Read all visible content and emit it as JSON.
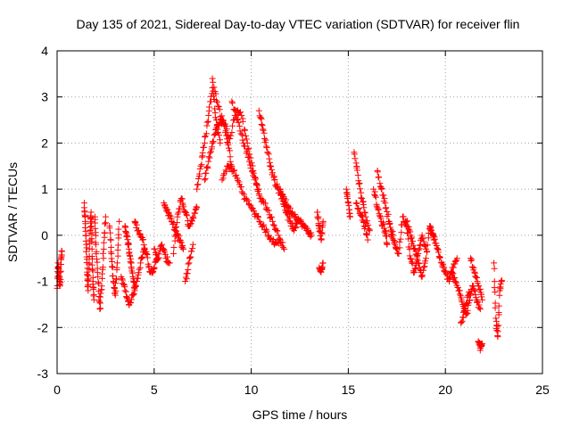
{
  "chart_data": {
    "type": "scatter",
    "title": "Day 135 of 2021, Sidereal Day-to-day VTEC variation (SDTVAR) for receiver flin",
    "xlabel": "GPS time / hours",
    "ylabel": "SDTVAR / TECUs",
    "xlim": [
      0,
      25
    ],
    "ylim": [
      -3,
      4
    ],
    "xticks": [
      0,
      5,
      10,
      15,
      20,
      25
    ],
    "yticks": [
      -3,
      -2,
      -1,
      0,
      1,
      2,
      3,
      4
    ],
    "xtick_labels": [
      "0",
      "5",
      "10",
      "15",
      "20",
      "25"
    ],
    "ytick_labels": [
      "-3",
      "-2",
      "-1",
      "0",
      "1",
      "2",
      "3",
      "4"
    ],
    "grid": true,
    "marker": "+",
    "color": "#ff0000",
    "series": [
      {
        "name": "SDTVAR",
        "segments": [
          {
            "x": [
              0.0,
              0.05,
              0.1,
              0.15,
              0.2,
              0.25
            ],
            "y": [
              -1.15,
              -0.6,
              -0.9,
              -1.1,
              -0.5,
              -0.35
            ]
          },
          {
            "x": [
              1.4,
              1.45,
              1.5,
              1.55,
              1.6,
              1.65,
              1.7,
              1.75,
              1.8,
              1.85,
              1.9
            ],
            "y": [
              0.7,
              0.3,
              -0.2,
              -0.8,
              -1.2,
              -0.6,
              0.1,
              0.5,
              -0.3,
              -1.0,
              -1.4
            ]
          },
          {
            "x": [
              1.95,
              2.0,
              2.1,
              2.2,
              2.3,
              2.4,
              2.5
            ],
            "y": [
              0.4,
              -0.2,
              -0.9,
              -1.6,
              -1.1,
              -0.3,
              0.4
            ]
          },
          {
            "x": [
              2.7,
              2.8,
              2.9,
              3.0,
              3.1,
              3.2
            ],
            "y": [
              0.2,
              -0.4,
              -1.0,
              -1.3,
              -0.6,
              0.3
            ]
          },
          {
            "x": [
              3.3,
              3.5,
              3.7,
              3.9,
              4.1,
              4.3,
              4.5
            ],
            "y": [
              -0.9,
              -1.2,
              -1.5,
              -1.3,
              -1.0,
              -0.6,
              -0.3
            ]
          },
          {
            "x": [
              3.5,
              3.6,
              3.7,
              3.8,
              3.9,
              4.0
            ],
            "y": [
              0.2,
              0.0,
              -0.3,
              -0.6,
              -0.9,
              -1.2
            ]
          },
          {
            "x": [
              4.0,
              4.2,
              4.4,
              4.6,
              4.8,
              5.0,
              5.2
            ],
            "y": [
              0.3,
              0.1,
              -0.1,
              -0.4,
              -0.8,
              -0.7,
              -0.5
            ]
          },
          {
            "x": [
              5.0,
              5.2,
              5.4,
              5.6,
              5.8
            ],
            "y": [
              -0.3,
              -0.5,
              -0.2,
              -0.5,
              -0.6
            ]
          },
          {
            "x": [
              5.5,
              5.7,
              5.9,
              6.1,
              6.3,
              6.5
            ],
            "y": [
              0.7,
              0.5,
              0.3,
              0.1,
              -0.1,
              -0.3
            ]
          },
          {
            "x": [
              6.0,
              6.2,
              6.4,
              6.6,
              6.8,
              7.0,
              7.2
            ],
            "y": [
              -0.4,
              0.4,
              0.8,
              0.5,
              0.2,
              0.4,
              0.6
            ]
          },
          {
            "x": [
              6.6,
              6.8,
              7.0
            ],
            "y": [
              -1.0,
              -0.6,
              -0.2
            ]
          },
          {
            "x": [
              7.2,
              7.4,
              7.6,
              7.8,
              8.0,
              8.2,
              8.4
            ],
            "y": [
              1.0,
              1.5,
              2.0,
              2.6,
              3.2,
              2.5,
              2.0
            ]
          },
          {
            "x": [
              7.6,
              7.8,
              8.0,
              8.2,
              8.4,
              8.6,
              8.8,
              9.0
            ],
            "y": [
              1.2,
              1.6,
              2.0,
              2.3,
              2.5,
              2.4,
              2.0,
              1.5
            ]
          },
          {
            "x": [
              8.0,
              8.3,
              8.6,
              8.9,
              9.2,
              9.5,
              9.8,
              10.1,
              10.4
            ],
            "y": [
              3.4,
              2.8,
              2.4,
              2.1,
              2.7,
              2.6,
              2.0,
              1.4,
              0.9
            ]
          },
          {
            "x": [
              8.5,
              8.8,
              9.1,
              9.4,
              9.7,
              10.0,
              10.3,
              10.6,
              10.9,
              11.2,
              11.5
            ],
            "y": [
              1.2,
              1.5,
              1.4,
              1.1,
              0.8,
              0.6,
              0.4,
              0.2,
              0.0,
              -0.2,
              -0.1
            ]
          },
          {
            "x": [
              9.0,
              9.3,
              9.6,
              9.9,
              10.2,
              10.5,
              10.8,
              11.1,
              11.4,
              11.7
            ],
            "y": [
              2.9,
              2.5,
              2.0,
              1.6,
              1.2,
              0.8,
              0.6,
              0.3,
              0.0,
              -0.3
            ]
          },
          {
            "x": [
              10.4,
              10.6,
              10.8,
              11.0,
              11.2,
              11.4,
              11.6,
              11.8,
              12.0,
              12.2,
              12.4
            ],
            "y": [
              2.7,
              2.3,
              1.9,
              1.5,
              1.2,
              1.0,
              0.8,
              0.5,
              0.3,
              0.1,
              0.3
            ]
          },
          {
            "x": [
              11.5,
              11.7,
              11.9,
              12.1,
              12.3,
              12.5,
              12.7,
              12.9,
              13.1
            ],
            "y": [
              1.0,
              0.8,
              0.6,
              0.5,
              0.4,
              0.3,
              0.2,
              0.1,
              0.0
            ]
          },
          {
            "x": [
              13.4,
              13.5,
              13.6,
              13.7
            ],
            "y": [
              0.5,
              0.2,
              -0.1,
              0.3
            ]
          },
          {
            "x": [
              13.5,
              13.6,
              13.7
            ],
            "y": [
              -0.7,
              -0.8,
              -0.6
            ]
          },
          {
            "x": [
              14.9,
              15.0,
              15.1
            ],
            "y": [
              1.0,
              0.7,
              0.4
            ]
          },
          {
            "x": [
              15.3,
              15.5,
              15.7,
              15.9,
              16.1
            ],
            "y": [
              1.8,
              1.3,
              0.8,
              0.4,
              0.1
            ]
          },
          {
            "x": [
              15.4,
              15.6,
              15.8,
              16.0
            ],
            "y": [
              0.7,
              0.5,
              0.3,
              -0.1
            ]
          },
          {
            "x": [
              16.3,
              16.5,
              16.7,
              16.9,
              17.0
            ],
            "y": [
              1.0,
              0.6,
              0.3,
              0.1,
              -0.2
            ]
          },
          {
            "x": [
              16.5,
              16.7,
              16.9,
              17.1,
              17.3
            ],
            "y": [
              1.4,
              1.0,
              0.7,
              0.3,
              0.0
            ]
          },
          {
            "x": [
              17.2,
              17.4,
              17.6,
              17.8,
              18.0,
              18.2,
              18.4,
              18.6,
              18.8,
              19.0
            ],
            "y": [
              0.0,
              -0.2,
              -0.4,
              0.4,
              0.2,
              -0.5,
              -0.8,
              -0.4,
              0.0,
              -0.3
            ]
          },
          {
            "x": [
              18.0,
              18.2,
              18.4,
              18.6,
              18.8,
              19.0,
              19.2,
              19.4
            ],
            "y": [
              0.3,
              0.0,
              -0.3,
              -0.6,
              -0.9,
              -0.5,
              0.2,
              -0.1
            ]
          },
          {
            "x": [
              19.2,
              19.4,
              19.6,
              19.8,
              20.0,
              20.2,
              20.4,
              20.6
            ],
            "y": [
              0.2,
              0.0,
              -0.3,
              -0.6,
              -0.8,
              -1.0,
              -0.7,
              -0.5
            ]
          },
          {
            "x": [
              20.3,
              20.5,
              20.7,
              20.9,
              21.1,
              21.3
            ],
            "y": [
              -0.8,
              -1.0,
              -1.2,
              -1.5,
              -1.7,
              -1.3
            ]
          },
          {
            "x": [
              20.8,
              21.0,
              21.2,
              21.4,
              21.6,
              21.8
            ],
            "y": [
              -1.9,
              -1.6,
              -1.3,
              -1.1,
              -1.4,
              -1.6
            ]
          },
          {
            "x": [
              21.3,
              21.5,
              21.7,
              21.9
            ],
            "y": [
              -0.5,
              -0.8,
              -1.1,
              -1.4
            ]
          },
          {
            "x": [
              21.7,
              21.8,
              21.9
            ],
            "y": [
              -2.3,
              -2.45,
              -2.35
            ]
          },
          {
            "x": [
              22.5,
              22.6,
              22.7,
              22.8,
              22.9
            ],
            "y": [
              -0.6,
              -1.8,
              -2.2,
              -1.2,
              -1.0
            ]
          }
        ]
      }
    ]
  }
}
